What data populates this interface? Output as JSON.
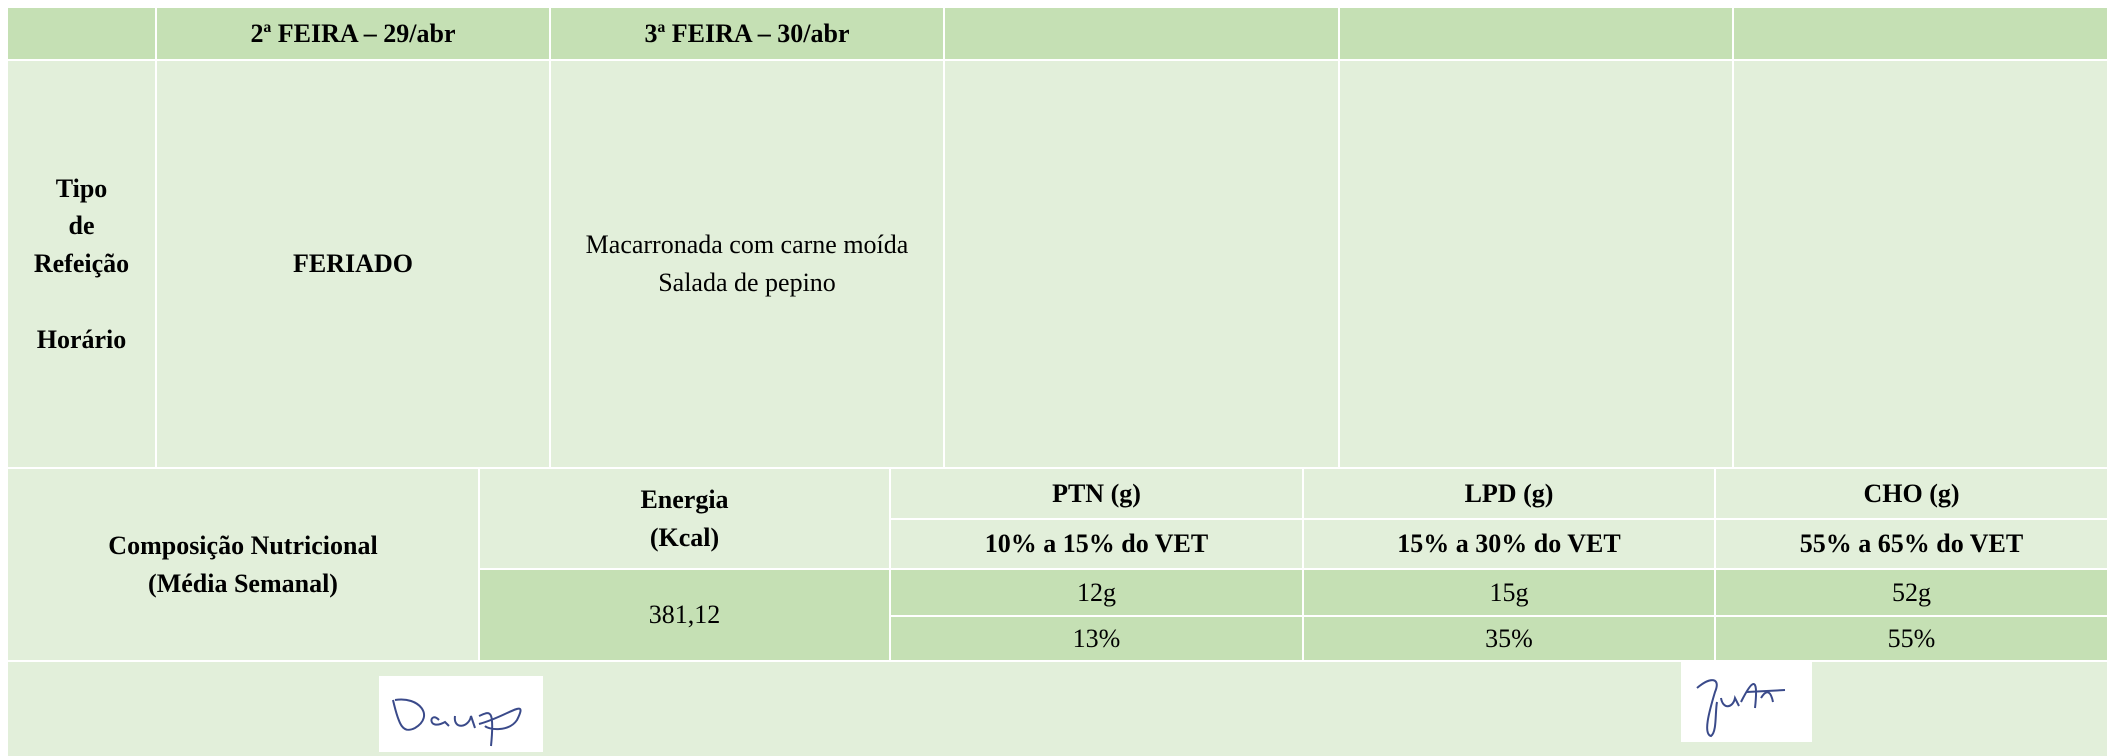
{
  "header": {
    "days": [
      "2ª FEIRA – 29/abr",
      "3ª FEIRA – 30/abr"
    ]
  },
  "meal": {
    "label_lines": [
      "Tipo",
      "de",
      "Refeição"
    ],
    "time_label": "Horário",
    "cells": [
      "FERIADO",
      [
        "Macarronada com carne moída",
        "Salada de pepino"
      ]
    ]
  },
  "nutrition": {
    "label_lines": [
      "Composição Nutricional",
      "(Média Semanal)"
    ],
    "energy": {
      "header_lines": [
        "Energia",
        "(Kcal)"
      ],
      "value": "381,12"
    },
    "columns": [
      {
        "name": "PTN (g)",
        "range": "10% a 15% do VET",
        "grams": "12g",
        "percent": "13%"
      },
      {
        "name": "LPD (g)",
        "range": "15% a 30% do VET",
        "grams": "15g",
        "percent": "35%"
      },
      {
        "name": "CHO (g)",
        "range": "55% a 65% do VET",
        "grams": "52g",
        "percent": "55%"
      }
    ]
  }
}
